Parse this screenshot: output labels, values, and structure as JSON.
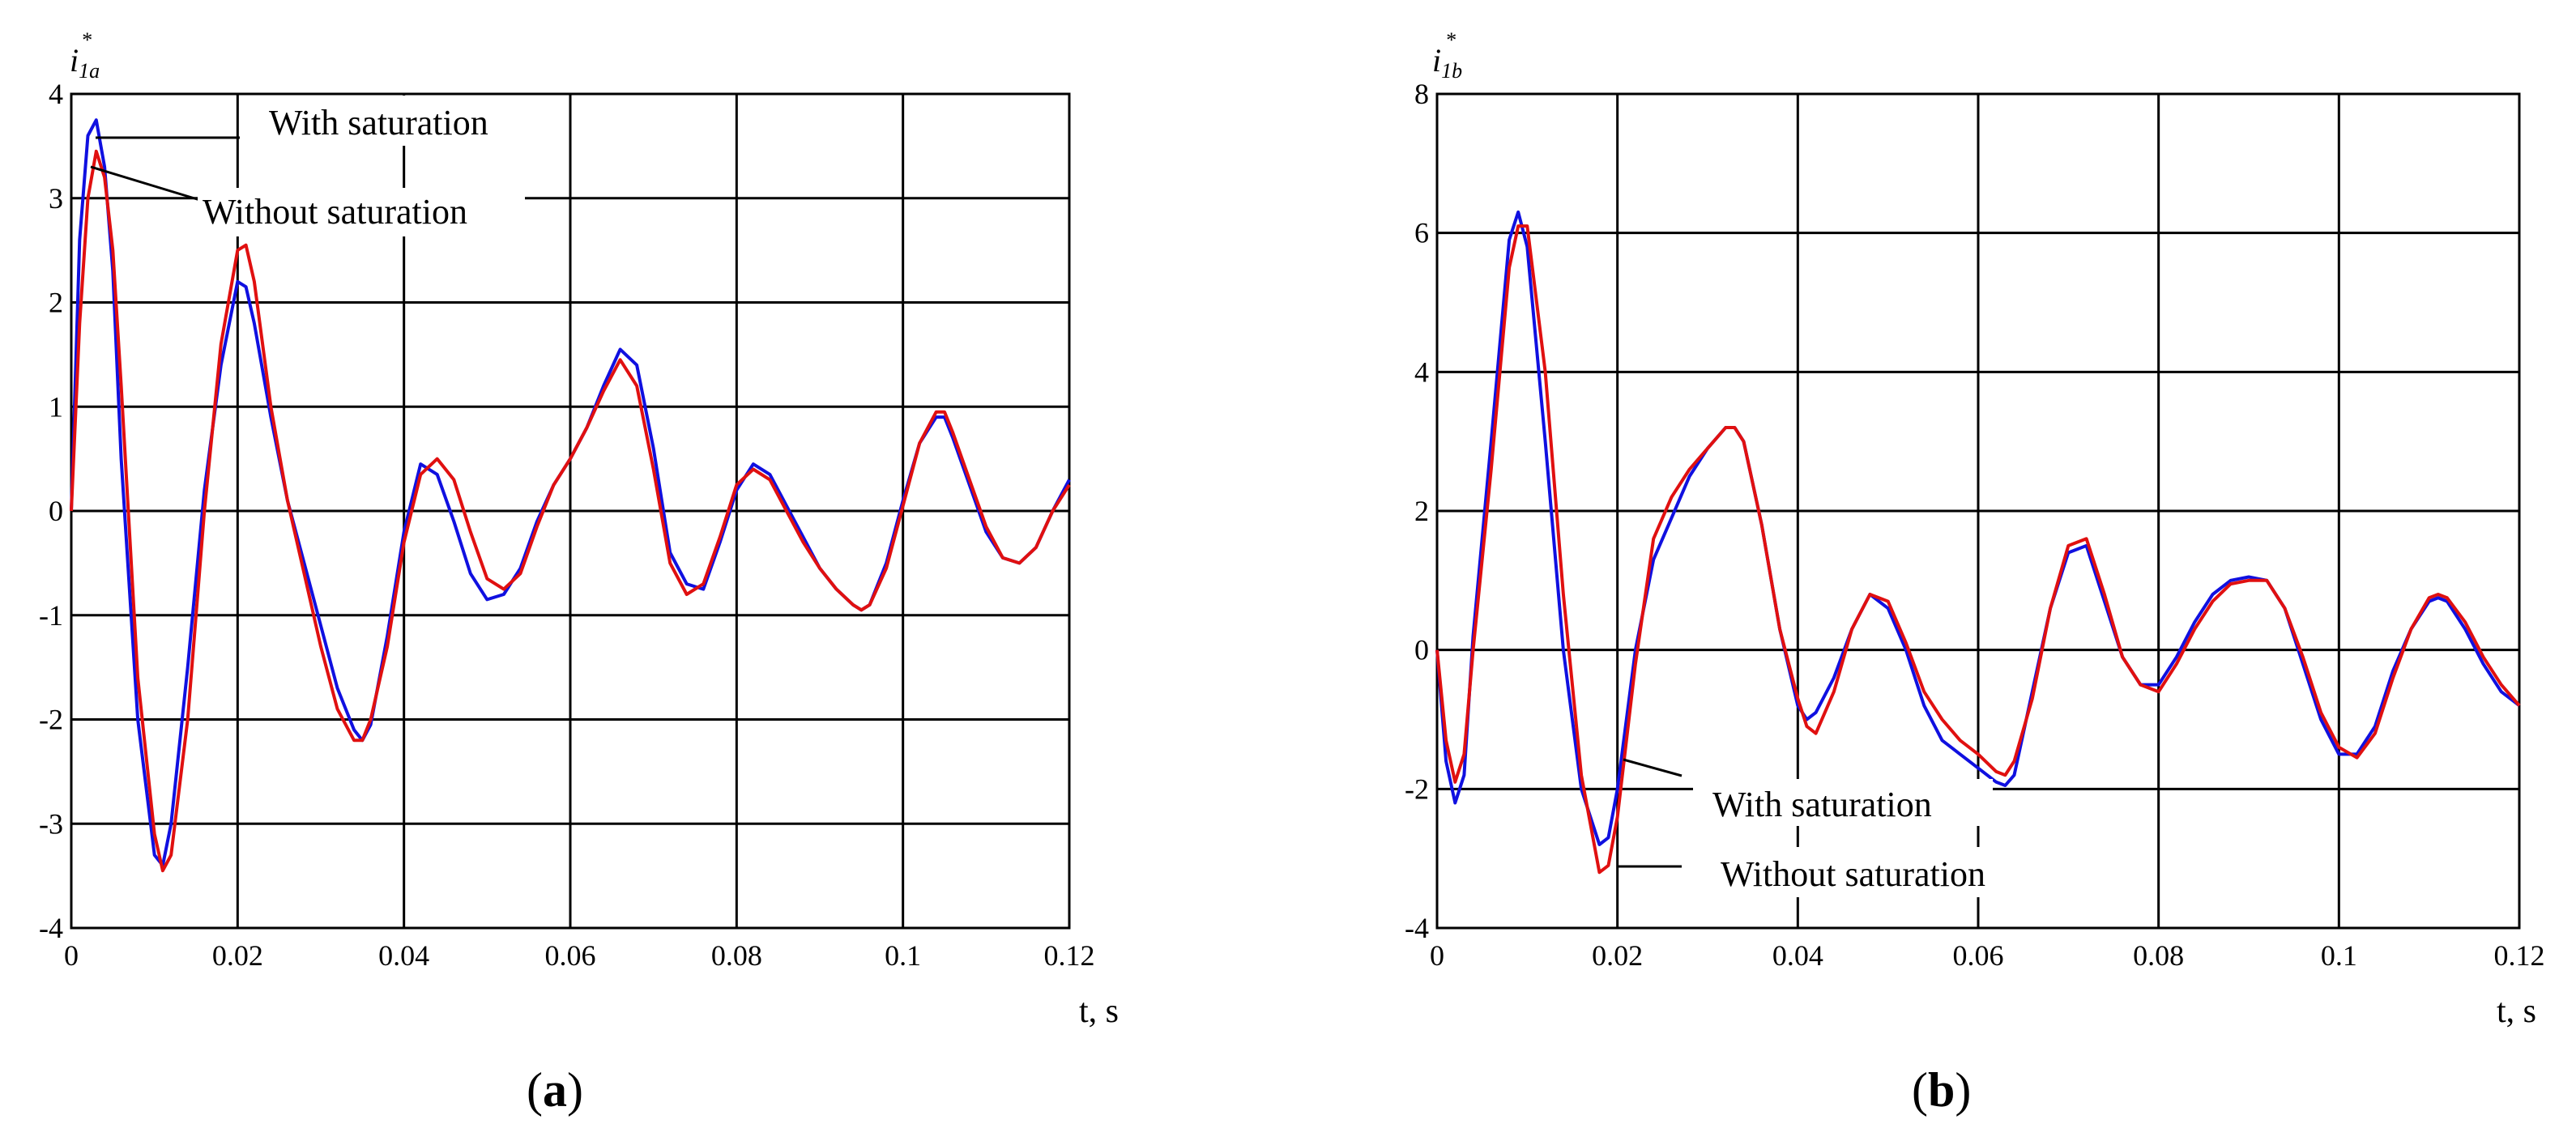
{
  "chart_data": [
    {
      "type": "line",
      "panel_label": "(a)",
      "panel_letter": "a",
      "ylabel_base": "i",
      "ylabel_sub": "1a",
      "ylabel_sup": "*",
      "xlabel": "t, s",
      "xlim": [
        0,
        0.12
      ],
      "ylim": [
        -4,
        4
      ],
      "xticks": [
        0,
        0.02,
        0.04,
        0.06,
        0.08,
        0.1,
        0.12
      ],
      "xtick_labels": [
        "0",
        "0.02",
        "0.04",
        "0.06",
        "0.08",
        "0.1",
        "0.12"
      ],
      "yticks": [
        -4,
        -3,
        -2,
        -1,
        0,
        1,
        2,
        3,
        4
      ],
      "ytick_labels": [
        "-4",
        "-3",
        "-2",
        "-1",
        "0",
        "1",
        "2",
        "3",
        "4"
      ],
      "grid": true,
      "annotations": [
        {
          "text": "With saturation",
          "series": "blue"
        },
        {
          "text": "Without saturation",
          "series": "red"
        }
      ],
      "series": [
        {
          "color": "#1010e0",
          "x": [
            0,
            0.001,
            0.002,
            0.003,
            0.004,
            0.005,
            0.006,
            0.008,
            0.01,
            0.011,
            0.012,
            0.014,
            0.016,
            0.018,
            0.02,
            0.021,
            0.022,
            0.024,
            0.026,
            0.028,
            0.03,
            0.032,
            0.034,
            0.035,
            0.036,
            0.038,
            0.04,
            0.042,
            0.044,
            0.046,
            0.048,
            0.05,
            0.052,
            0.054,
            0.056,
            0.058,
            0.06,
            0.062,
            0.064,
            0.066,
            0.068,
            0.07,
            0.072,
            0.074,
            0.076,
            0.078,
            0.08,
            0.082,
            0.084,
            0.086,
            0.088,
            0.09,
            0.092,
            0.094,
            0.095,
            0.096,
            0.098,
            0.1,
            0.102,
            0.104,
            0.105,
            0.106,
            0.108,
            0.11,
            0.112,
            0.114,
            0.116,
            0.118,
            0.12
          ],
          "y": [
            0,
            2.6,
            3.6,
            3.75,
            3.3,
            2.3,
            0.5,
            -2.0,
            -3.3,
            -3.4,
            -3.0,
            -1.5,
            0.2,
            1.4,
            2.2,
            2.15,
            1.8,
            0.9,
            0.1,
            -0.5,
            -1.1,
            -1.7,
            -2.1,
            -2.2,
            -2.05,
            -1.2,
            -0.2,
            0.45,
            0.35,
            -0.1,
            -0.6,
            -0.85,
            -0.8,
            -0.55,
            -0.1,
            0.25,
            0.5,
            0.8,
            1.2,
            1.55,
            1.4,
            0.6,
            -0.4,
            -0.7,
            -0.75,
            -0.3,
            0.2,
            0.45,
            0.35,
            0.05,
            -0.25,
            -0.55,
            -0.75,
            -0.9,
            -0.95,
            -0.9,
            -0.5,
            0.1,
            0.65,
            0.9,
            0.9,
            0.7,
            0.25,
            -0.2,
            -0.45,
            -0.5,
            -0.35,
            0.0,
            0.3
          ]
        },
        {
          "color": "#e01010",
          "x": [
            0,
            0.001,
            0.002,
            0.003,
            0.004,
            0.005,
            0.006,
            0.008,
            0.01,
            0.011,
            0.012,
            0.014,
            0.016,
            0.018,
            0.02,
            0.021,
            0.022,
            0.024,
            0.026,
            0.028,
            0.03,
            0.032,
            0.034,
            0.035,
            0.036,
            0.038,
            0.04,
            0.042,
            0.044,
            0.046,
            0.048,
            0.05,
            0.052,
            0.054,
            0.056,
            0.058,
            0.06,
            0.062,
            0.064,
            0.066,
            0.068,
            0.07,
            0.072,
            0.074,
            0.076,
            0.078,
            0.08,
            0.082,
            0.084,
            0.086,
            0.088,
            0.09,
            0.092,
            0.094,
            0.095,
            0.096,
            0.098,
            0.1,
            0.102,
            0.104,
            0.105,
            0.106,
            0.108,
            0.11,
            0.112,
            0.114,
            0.116,
            0.118,
            0.12
          ],
          "y": [
            0,
            1.8,
            3.0,
            3.45,
            3.2,
            2.5,
            1.2,
            -1.6,
            -3.1,
            -3.45,
            -3.3,
            -2.0,
            0.0,
            1.6,
            2.5,
            2.55,
            2.2,
            1.0,
            0.1,
            -0.6,
            -1.3,
            -1.9,
            -2.2,
            -2.2,
            -2.0,
            -1.3,
            -0.3,
            0.35,
            0.5,
            0.3,
            -0.2,
            -0.65,
            -0.75,
            -0.6,
            -0.15,
            0.25,
            0.5,
            0.8,
            1.15,
            1.45,
            1.2,
            0.4,
            -0.5,
            -0.8,
            -0.7,
            -0.25,
            0.25,
            0.4,
            0.3,
            0.0,
            -0.3,
            -0.55,
            -0.75,
            -0.9,
            -0.95,
            -0.9,
            -0.55,
            0.05,
            0.65,
            0.95,
            0.95,
            0.75,
            0.3,
            -0.15,
            -0.45,
            -0.5,
            -0.35,
            0.0,
            0.25
          ]
        }
      ]
    },
    {
      "type": "line",
      "panel_label": "(b)",
      "panel_letter": "b",
      "ylabel_base": "i",
      "ylabel_sub": "1b",
      "ylabel_sup": "*",
      "xlabel": "t, s",
      "xlim": [
        0,
        0.12
      ],
      "ylim": [
        -4,
        8
      ],
      "xticks": [
        0,
        0.02,
        0.04,
        0.06,
        0.08,
        0.1,
        0.12
      ],
      "xtick_labels": [
        "0",
        "0.02",
        "0.04",
        "0.06",
        "0.08",
        "0.1",
        "0.12"
      ],
      "yticks": [
        -4,
        -2,
        0,
        2,
        4,
        6,
        8
      ],
      "ytick_labels": [
        "-4",
        "-2",
        "0",
        "2",
        "4",
        "6",
        "8"
      ],
      "grid": true,
      "annotations": [
        {
          "text": "With saturation",
          "series": "blue"
        },
        {
          "text": "Without saturation",
          "series": "red"
        }
      ],
      "series": [
        {
          "color": "#1010e0",
          "x": [
            0,
            0.001,
            0.002,
            0.003,
            0.004,
            0.006,
            0.008,
            0.009,
            0.01,
            0.012,
            0.014,
            0.016,
            0.018,
            0.019,
            0.02,
            0.022,
            0.024,
            0.026,
            0.028,
            0.03,
            0.032,
            0.033,
            0.034,
            0.036,
            0.038,
            0.04,
            0.041,
            0.042,
            0.044,
            0.046,
            0.048,
            0.05,
            0.052,
            0.054,
            0.056,
            0.058,
            0.06,
            0.062,
            0.063,
            0.064,
            0.066,
            0.068,
            0.07,
            0.072,
            0.074,
            0.076,
            0.078,
            0.08,
            0.082,
            0.084,
            0.086,
            0.088,
            0.09,
            0.092,
            0.094,
            0.096,
            0.098,
            0.1,
            0.102,
            0.104,
            0.106,
            0.108,
            0.11,
            0.111,
            0.112,
            0.114,
            0.116,
            0.118,
            0.12
          ],
          "y": [
            0,
            -1.6,
            -2.2,
            -1.8,
            0.2,
            3.0,
            5.9,
            6.3,
            5.8,
            3.0,
            0.0,
            -2.0,
            -2.8,
            -2.7,
            -2.0,
            0.0,
            1.3,
            1.9,
            2.5,
            2.9,
            3.2,
            3.2,
            3.0,
            1.8,
            0.3,
            -0.8,
            -1.0,
            -0.9,
            -0.4,
            0.3,
            0.8,
            0.6,
            0.0,
            -0.8,
            -1.3,
            -1.5,
            -1.7,
            -1.9,
            -1.95,
            -1.8,
            -0.6,
            0.6,
            1.4,
            1.5,
            0.7,
            -0.1,
            -0.5,
            -0.5,
            -0.1,
            0.4,
            0.8,
            1.0,
            1.05,
            1.0,
            0.6,
            -0.2,
            -1.0,
            -1.5,
            -1.5,
            -1.1,
            -0.3,
            0.3,
            0.7,
            0.75,
            0.7,
            0.3,
            -0.2,
            -0.6,
            -0.8
          ]
        },
        {
          "color": "#e01010",
          "x": [
            0,
            0.001,
            0.002,
            0.003,
            0.004,
            0.006,
            0.008,
            0.009,
            0.01,
            0.012,
            0.014,
            0.016,
            0.018,
            0.019,
            0.02,
            0.022,
            0.024,
            0.026,
            0.028,
            0.03,
            0.032,
            0.033,
            0.034,
            0.036,
            0.038,
            0.04,
            0.041,
            0.042,
            0.044,
            0.046,
            0.048,
            0.05,
            0.052,
            0.054,
            0.056,
            0.058,
            0.06,
            0.062,
            0.063,
            0.064,
            0.066,
            0.068,
            0.07,
            0.072,
            0.074,
            0.076,
            0.078,
            0.08,
            0.082,
            0.084,
            0.086,
            0.088,
            0.09,
            0.092,
            0.094,
            0.096,
            0.098,
            0.1,
            0.102,
            0.104,
            0.106,
            0.108,
            0.11,
            0.111,
            0.112,
            0.114,
            0.116,
            0.118,
            0.12
          ],
          "y": [
            0,
            -1.3,
            -1.9,
            -1.5,
            0.0,
            2.6,
            5.5,
            6.1,
            6.1,
            4.0,
            0.8,
            -1.8,
            -3.2,
            -3.1,
            -2.4,
            -0.2,
            1.6,
            2.2,
            2.6,
            2.9,
            3.2,
            3.2,
            3.0,
            1.8,
            0.3,
            -0.7,
            -1.1,
            -1.2,
            -0.6,
            0.3,
            0.8,
            0.7,
            0.1,
            -0.6,
            -1.0,
            -1.3,
            -1.5,
            -1.75,
            -1.8,
            -1.6,
            -0.7,
            0.6,
            1.5,
            1.6,
            0.8,
            -0.1,
            -0.5,
            -0.6,
            -0.2,
            0.3,
            0.7,
            0.95,
            1.0,
            1.0,
            0.6,
            -0.1,
            -0.9,
            -1.4,
            -1.55,
            -1.2,
            -0.4,
            0.3,
            0.75,
            0.8,
            0.75,
            0.4,
            -0.1,
            -0.5,
            -0.8
          ]
        }
      ]
    }
  ]
}
